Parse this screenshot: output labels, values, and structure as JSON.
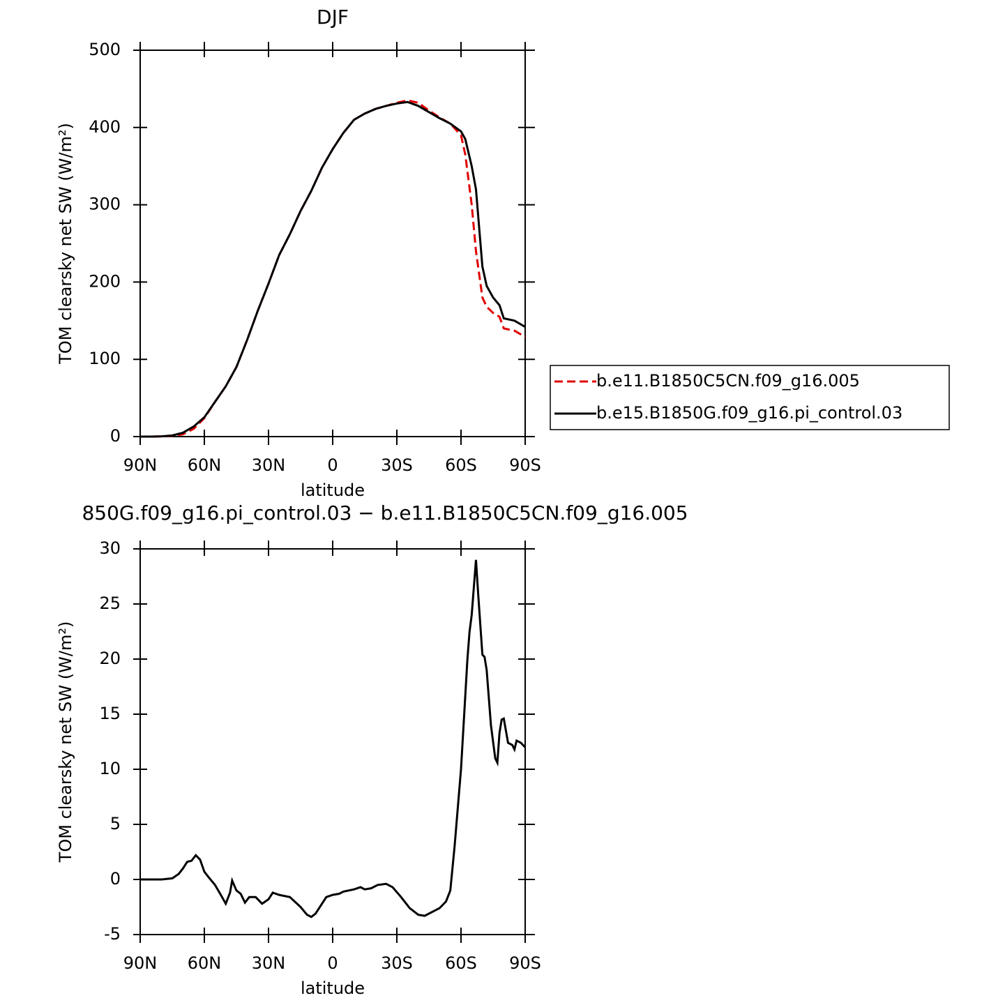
{
  "chart_data": [
    {
      "type": "line",
      "title": "DJF",
      "xlabel": "latitude",
      "ylabel": "TOM clearsky net SW (W/m²)",
      "x": [
        90,
        85,
        80,
        75,
        70,
        65,
        60,
        55,
        50,
        45,
        40,
        35,
        30,
        25,
        20,
        15,
        10,
        5,
        0,
        -5,
        -10,
        -15,
        -20,
        -25,
        -30,
        -35,
        -40,
        -45,
        -50,
        -55,
        -60,
        -62,
        -65,
        -67,
        -70,
        -72,
        -75,
        -78,
        -80,
        -85,
        -90
      ],
      "series": [
        {
          "name": "b.e11.B1850C5CN.f09_g16.005",
          "color": "#e00000",
          "dash": true,
          "values": [
            0,
            0,
            0.2,
            1,
            3,
            10,
            24,
            45,
            65,
            90,
            125,
            163,
            198,
            235,
            262,
            292,
            318,
            348,
            372,
            393,
            410,
            418,
            424,
            428,
            432,
            435,
            432,
            422,
            413,
            405,
            390,
            365,
            300,
            240,
            180,
            168,
            160,
            155,
            140,
            137,
            129
          ]
        },
        {
          "name": "b.e15.B1850G.f09_g16.pi_control.03",
          "color": "#000000",
          "dash": false,
          "values": [
            0,
            0,
            0.3,
            1.5,
            5,
            13,
            25,
            45,
            65,
            90,
            125,
            163,
            198,
            235,
            262,
            292,
            318,
            348,
            372,
            393,
            410,
            418,
            424,
            428,
            431,
            433,
            428,
            420,
            412,
            405,
            395,
            385,
            350,
            320,
            220,
            195,
            180,
            170,
            153,
            150,
            142
          ]
        }
      ],
      "xlim": [
        90,
        -90
      ],
      "ylim": [
        0,
        500
      ],
      "xticks": [
        {
          "value": 90,
          "label": "90N"
        },
        {
          "value": 60,
          "label": "60N"
        },
        {
          "value": 30,
          "label": "30N"
        },
        0,
        {
          "value": -30,
          "label": "30S"
        },
        {
          "value": -60,
          "label": "60S"
        },
        {
          "value": -90,
          "label": "90S"
        }
      ],
      "yticks": [
        0,
        100,
        200,
        300,
        400,
        500
      ],
      "legend": "right"
    },
    {
      "type": "line",
      "title": "850G.f09_g16.pi_control.03 − b.e11.B1850C5CN.f09_g16.005",
      "xlabel": "latitude",
      "ylabel": "TOM clearsky net SW (W/m²)",
      "x": [
        90,
        85,
        80,
        75,
        72,
        70,
        68,
        66,
        64,
        62,
        60,
        58,
        55,
        52,
        50,
        48,
        47,
        45,
        43,
        41,
        39,
        36,
        33,
        30,
        28,
        25,
        20,
        15,
        12,
        10,
        8,
        5,
        3,
        0,
        -3,
        -5,
        -10,
        -13,
        -15,
        -18,
        -21,
        -25,
        -28,
        -32,
        -36,
        -40,
        -43,
        -47,
        -50,
        -53,
        -55,
        -57,
        -60,
        -63,
        -64,
        -65,
        -67,
        -68,
        -70,
        -71,
        -72,
        -74,
        -76,
        -77,
        -78,
        -79,
        -80,
        -82,
        -84,
        -85,
        -86,
        -88,
        -90
      ],
      "series": [
        {
          "color": "#000000",
          "dash": false,
          "values": [
            0,
            0,
            0,
            0.1,
            0.5,
            1.0,
            1.6,
            1.7,
            2.2,
            1.8,
            0.7,
            0.2,
            -0.5,
            -1.5,
            -2.2,
            -1.2,
            -0.1,
            -1.0,
            -1.3,
            -2.1,
            -1.6,
            -1.6,
            -2.2,
            -1.8,
            -1.2,
            -1.4,
            -1.6,
            -2.5,
            -3.2,
            -3.4,
            -3.1,
            -2.2,
            -1.6,
            -1.4,
            -1.3,
            -1.1,
            -0.9,
            -0.7,
            -0.9,
            -0.8,
            -0.5,
            -0.4,
            -0.7,
            -1.6,
            -2.6,
            -3.2,
            -3.3,
            -2.9,
            -2.6,
            -2.0,
            -1.0,
            3,
            10,
            20,
            22.5,
            24,
            29,
            26,
            20.4,
            20.2,
            19,
            14,
            11,
            10.6,
            13.3,
            14.5,
            14.6,
            12.4,
            12.2,
            11.8,
            12.6,
            12.4,
            12.0
          ]
        }
      ],
      "xlim": [
        90,
        -90
      ],
      "ylim": [
        -5,
        30
      ],
      "xticks": [
        {
          "value": 90,
          "label": "90N"
        },
        {
          "value": 60,
          "label": "60N"
        },
        {
          "value": 30,
          "label": "30N"
        },
        0,
        {
          "value": -30,
          "label": "30S"
        },
        {
          "value": -60,
          "label": "60S"
        },
        {
          "value": -90,
          "label": "90S"
        }
      ],
      "yticks": [
        -5,
        0,
        5,
        10,
        15,
        20,
        25,
        30
      ]
    }
  ]
}
